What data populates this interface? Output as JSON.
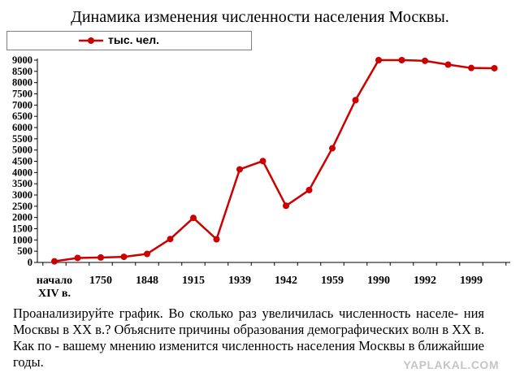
{
  "title": "Динамика изменения численности населения Москвы.",
  "legend": {
    "label": "тыс. чел."
  },
  "question": "Проанализируйте график. Во сколько раз увеличилась численность населе- ния Москвы в XX в.? Объясните причины образования демографических волн в XX в. Как по - вашему мнению изменится численность населения Москвы в ближайшие годы.",
  "watermark": "YAPLAKAL.COM",
  "colors": {
    "series": "#cc0000",
    "axis": "#000000"
  },
  "chart_data": {
    "type": "line",
    "series": [
      {
        "name": "тыс. чел.",
        "values": [
          50,
          200,
          220,
          250,
          380,
          1040,
          1980,
          1030,
          4140,
          4510,
          2520,
          3220,
          5080,
          7220,
          9000,
          9000,
          8970,
          8800,
          8650,
          8640
        ]
      }
    ],
    "x_tick_labels": [
      {
        "index": 0,
        "lines": [
          "начало",
          "XIV в."
        ]
      },
      {
        "index": 2,
        "lines": [
          "1750"
        ]
      },
      {
        "index": 4,
        "lines": [
          "1848"
        ]
      },
      {
        "index": 6,
        "lines": [
          "1915"
        ]
      },
      {
        "index": 8,
        "lines": [
          "1939"
        ]
      },
      {
        "index": 10,
        "lines": [
          "1942"
        ]
      },
      {
        "index": 12,
        "lines": [
          "1959"
        ]
      },
      {
        "index": 14,
        "lines": [
          "1990"
        ]
      },
      {
        "index": 16,
        "lines": [
          "1992"
        ]
      },
      {
        "index": 18,
        "lines": [
          "1999"
        ]
      }
    ],
    "y_ticks": [
      0,
      500,
      1000,
      1500,
      2000,
      2500,
      3000,
      3500,
      4000,
      4500,
      5000,
      5500,
      6000,
      6500,
      7000,
      7500,
      8000,
      8500,
      9000
    ],
    "ylim": [
      0,
      9000
    ],
    "grid": false,
    "legend_position": "top-left"
  }
}
